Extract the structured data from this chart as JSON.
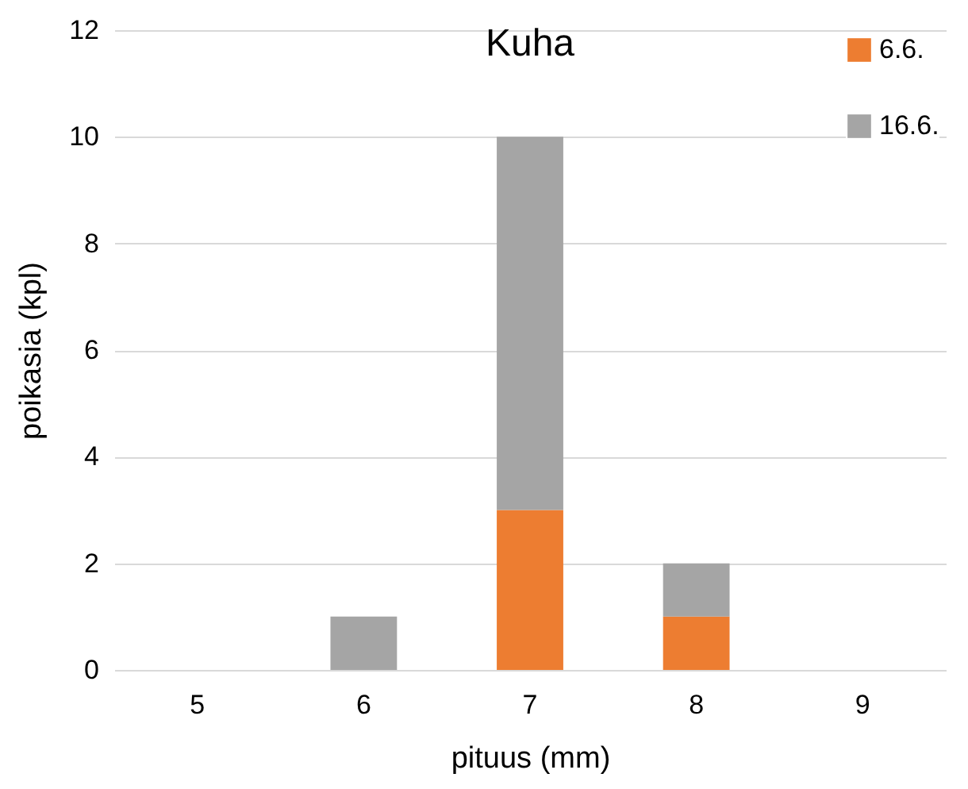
{
  "chart_data": {
    "type": "bar",
    "title": "Kuha",
    "xlabel": "pituus (mm)",
    "ylabel": "poikasia (kpl)",
    "categories": [
      "5",
      "6",
      "7",
      "8",
      "9"
    ],
    "stacked": true,
    "series": [
      {
        "name": "6.6.",
        "color": "#ed7d31",
        "values": [
          0,
          0,
          3,
          1,
          0
        ]
      },
      {
        "name": "16.6.",
        "color": "#a5a5a5",
        "values": [
          0,
          1,
          7,
          1,
          0
        ]
      }
    ],
    "ylim": [
      0,
      12
    ],
    "yticks": [
      0,
      2,
      4,
      6,
      8,
      10,
      12
    ],
    "grid": "y",
    "legend": "top right"
  }
}
